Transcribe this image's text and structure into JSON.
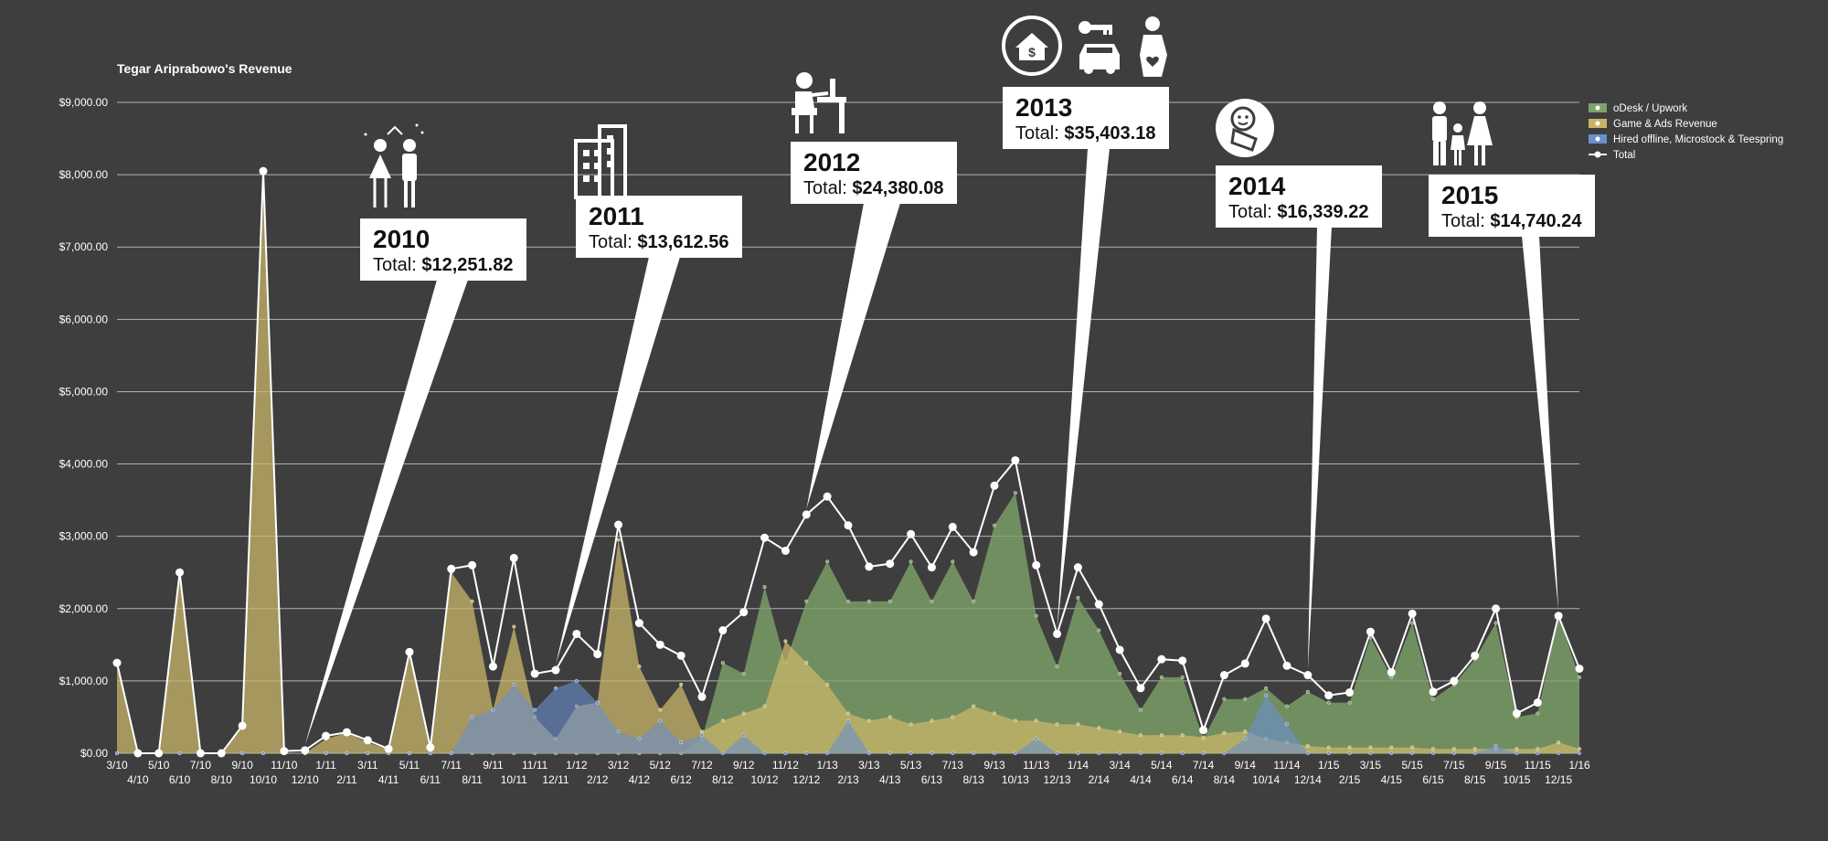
{
  "chart_data": {
    "type": "area",
    "title": "Tegar Ariprabowo's Revenue",
    "ylim": [
      0,
      9000
    ],
    "yticks": [
      "$0.00",
      "$1,000.00",
      "$2,000.00",
      "$3,000.00",
      "$4,000.00",
      "$5,000.00",
      "$6,000.00",
      "$7,000.00",
      "$8,000.00",
      "$9,000.00"
    ],
    "grid": true,
    "legend_position": "top-right",
    "x": [
      "3/10",
      "4/10",
      "5/10",
      "6/10",
      "7/10",
      "8/10",
      "9/10",
      "10/10",
      "11/10",
      "12/10",
      "1/11",
      "2/11",
      "3/11",
      "4/11",
      "5/11",
      "6/11",
      "7/11",
      "8/11",
      "9/11",
      "10/11",
      "11/11",
      "12/11",
      "1/12",
      "2/12",
      "3/12",
      "4/12",
      "5/12",
      "6/12",
      "7/12",
      "8/12",
      "9/12",
      "10/12",
      "11/12",
      "12/12",
      "1/13",
      "2/13",
      "3/13",
      "4/13",
      "5/13",
      "6/13",
      "7/13",
      "8/13",
      "9/13",
      "10/13",
      "11/13",
      "12/13",
      "1/14",
      "2/14",
      "3/14",
      "4/14",
      "5/14",
      "6/14",
      "7/14",
      "8/14",
      "9/14",
      "10/14",
      "11/14",
      "12/14",
      "1/15",
      "2/15",
      "3/15",
      "4/15",
      "5/15",
      "6/15",
      "7/15",
      "8/15",
      "9/15",
      "10/15",
      "11/15",
      "12/15",
      "1/16"
    ],
    "series": [
      {
        "name": "oDesk / Upwork",
        "color": "#7ea36a",
        "values": [
          0,
          0,
          0,
          0,
          0,
          0,
          0,
          0,
          0,
          0,
          0,
          0,
          0,
          0,
          0,
          0,
          0,
          0,
          0,
          0,
          0,
          0,
          0,
          0,
          0,
          0,
          0,
          0,
          200,
          1250,
          1100,
          2300,
          1250,
          2100,
          2650,
          2100,
          2100,
          2100,
          2650,
          2100,
          2650,
          2100,
          3150,
          3600,
          1900,
          1200,
          2150,
          1700,
          1100,
          600,
          1050,
          1050,
          200,
          750,
          750,
          900,
          650,
          850,
          700,
          700,
          1600,
          1050,
          1800,
          750,
          950,
          1300,
          1800,
          500,
          550,
          1900,
          1050
        ]
      },
      {
        "name": "Game & Ads Revenue",
        "color": "#c9b56a",
        "values": [
          1250,
          0,
          0,
          2500,
          0,
          0,
          350,
          8050,
          0,
          0,
          200,
          280,
          150,
          50,
          1400,
          50,
          2500,
          2100,
          600,
          1750,
          500,
          200,
          650,
          700,
          2950,
          1200,
          600,
          950,
          300,
          450,
          550,
          650,
          1550,
          1250,
          950,
          550,
          450,
          500,
          400,
          450,
          500,
          650,
          550,
          450,
          450,
          400,
          400,
          350,
          300,
          250,
          250,
          250,
          220,
          280,
          300,
          200,
          150,
          100,
          80,
          80,
          80,
          80,
          80,
          60,
          60,
          60,
          60,
          60,
          60,
          150,
          60
        ]
      },
      {
        "name": "Hired offline, Microstock & Teespring",
        "color": "#6b8fcf",
        "values": [
          0,
          0,
          0,
          0,
          0,
          0,
          0,
          0,
          0,
          0,
          0,
          0,
          0,
          0,
          0,
          0,
          0,
          500,
          600,
          950,
          600,
          900,
          1000,
          700,
          300,
          200,
          450,
          150,
          250,
          0,
          250,
          0,
          0,
          0,
          0,
          450,
          0,
          0,
          0,
          0,
          0,
          0,
          0,
          0,
          200,
          0,
          0,
          0,
          0,
          0,
          0,
          0,
          0,
          0,
          200,
          800,
          400,
          0,
          0,
          0,
          0,
          0,
          0,
          0,
          0,
          0,
          100,
          0,
          0,
          0,
          0
        ]
      },
      {
        "name": "Total",
        "color": "#ffffff",
        "values": [
          1250,
          0,
          0,
          2500,
          0,
          0,
          380,
          8050,
          30,
          40,
          240,
          290,
          180,
          60,
          1400,
          80,
          2550,
          2600,
          1200,
          2700,
          1100,
          1150,
          1650,
          1370,
          3160,
          1800,
          1500,
          1350,
          780,
          1700,
          1950,
          2980,
          2800,
          3300,
          3550,
          3150,
          2580,
          2620,
          3030,
          2570,
          3130,
          2780,
          3700,
          4050,
          2600,
          1650,
          2570,
          2060,
          1430,
          900,
          1300,
          1280,
          320,
          1080,
          1240,
          1860,
          1210,
          1080,
          800,
          840,
          1680,
          1120,
          1930,
          850,
          1000,
          1350,
          2000,
          550,
          700,
          1900,
          1170
        ]
      }
    ],
    "annotations": [
      {
        "year": "2010",
        "total_label": "Total:",
        "total": "$12,251.82",
        "icon": "wedding-couple-icon"
      },
      {
        "year": "2011",
        "total_label": "Total:",
        "total": "$13,612.56",
        "icon": "office-building-icon"
      },
      {
        "year": "2012",
        "total_label": "Total:",
        "total": "$24,380.08",
        "icon": "desk-worker-icon"
      },
      {
        "year": "2013",
        "total_label": "Total:",
        "total": "$35,403.18",
        "icon": "house-car-pregnant-icon"
      },
      {
        "year": "2014",
        "total_label": "Total:",
        "total": "$16,339.22",
        "icon": "baby-icon"
      },
      {
        "year": "2015",
        "total_label": "Total:",
        "total": "$14,740.24",
        "icon": "family-icon"
      }
    ]
  }
}
